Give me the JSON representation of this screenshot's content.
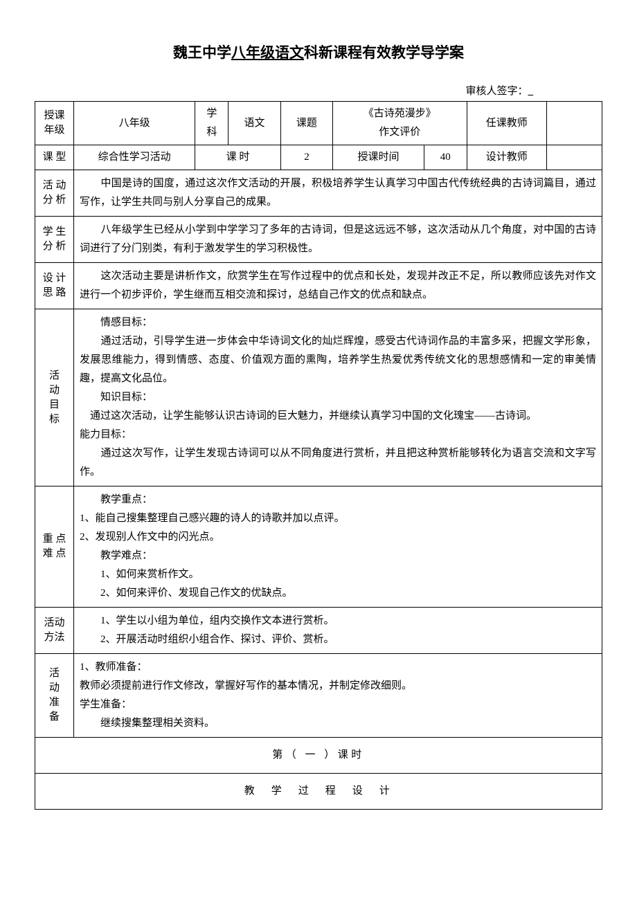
{
  "doc": {
    "title_prefix": "魏王中学",
    "title_grade": "八年级",
    "title_subject": "语文",
    "title_suffix": "科新课程有效教学导学案",
    "signature_label": "审核人签字：",
    "signature_value": "_"
  },
  "header": {
    "grade_label": "授课\n年级",
    "grade_value": "八年级",
    "subject_label": "学\n科",
    "subject_value": "语文",
    "topic_label": "课题",
    "topic_value": "《古诗苑漫步》\n作文评价",
    "teacher_label": "任课教师",
    "teacher_value": "",
    "type_label": "课 型",
    "type_value": "综合性学习活动",
    "period_label": "课 时",
    "period_value": "2",
    "time_label": "授课时间",
    "time_value": "40",
    "designer_label": "设计教师",
    "designer_value": ""
  },
  "rows": {
    "activity_analysis_label": "活 动\n分 析",
    "activity_analysis": "　　中国是诗的国度，通过这次作文活动的开展，积极培养学生认真学习中国古代传统经典的古诗词篇目，通过写作，让学生共同与别人分享自己的成果。",
    "student_analysis_label": "学 生\n分 析",
    "student_analysis": "　　八年级学生已经从小学到中学学习了多年的古诗词，但是这远远不够，这次活动从几个角度，对中国的古诗词进行了分门别类，有利于激发学生的学习积极性。",
    "design_label": "设 计\n思 路",
    "design": "　　这次活动主要是讲析作文，欣赏学生在写作过程中的优点和长处，发现并改正不足，所以教师应该先对作文进行一个初步评价，学生继而互相交流和探讨，总结自己作文的优点和缺点。",
    "goals_label": "活\n动\n目\n标",
    "goals": "　　情感目标：\n　　通过活动，引导学生进一步体会中华诗词文化的灿烂辉煌，感受古代诗词作品的丰富多采，把握文学形象，发展思维能力，得到情感、态度、价值观方面的熏陶，培养学生热爱优秀传统文化的思想感情和一定的审美情趣，提高文化品位。\n　　知识目标：\n　通过这次活动，让学生能够认识古诗词的巨大魅力，并继续认真学习中国的文化瑰宝——古诗词。\n能力目标：\n　　通过这次写作，让学生发现古诗词可以从不同角度进行赏析，并且把这种赏析能够转化为语言交流和文字写作。",
    "keypoints_label": "重 点\n难 点",
    "keypoints": "　　教学重点：\n1、能自己搜集整理自己感兴趣的诗人的诗歌并加以点评。\n2、发现别人作文中的闪光点。\n　　教学难点：\n　　1、如何来赏析作文。\n　　2、如何来评价、发现自己作文的优缺点。",
    "method_label": "活动\n方法",
    "method": "　　1、学生以小组为单位，组内交换作文本进行赏析。\n　　2、开展活动时组织小组合作、探讨、评价、赏析。",
    "prep_label": "活\n动\n准\n备",
    "prep": "1、教师准备：\n教师必须提前进行作文修改，掌握好写作的基本情况，并制定修改细则。\n学生准备：\n　　继续搜集整理相关资料。",
    "lesson_section": "第（ 一 ）课时",
    "process_section": "教　学　过　程　设　计"
  },
  "style": {
    "background_color": "#ffffff",
    "text_color": "#000000",
    "border_color": "#000000",
    "font_size_body": 15,
    "font_size_title": 21
  }
}
